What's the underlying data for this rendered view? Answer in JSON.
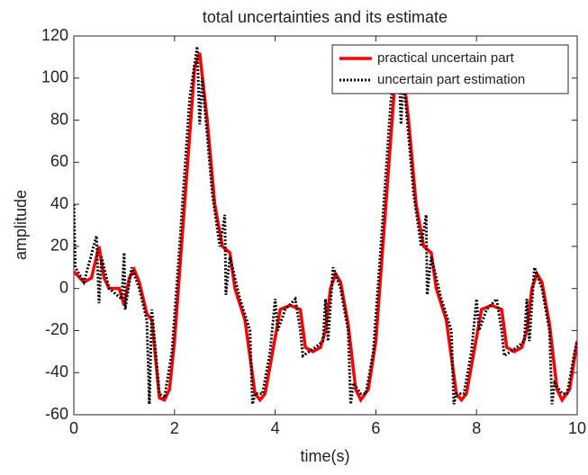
{
  "chart_data": {
    "type": "line",
    "title": "total uncertainties and its estimate",
    "x_label": "time(s)",
    "y_label": "amplitude",
    "xlim": [
      0,
      10
    ],
    "xticks": [
      0,
      2,
      4,
      6,
      8,
      10
    ],
    "ylim": [
      -60,
      120
    ],
    "yticks": [
      -60,
      -40,
      -20,
      0,
      20,
      40,
      60,
      80,
      100,
      120
    ],
    "grid": false,
    "legend": "upper right",
    "series": [
      {
        "name": "practical uncertain part",
        "color": "#ff0000",
        "line_style": "solid",
        "x": [
          0,
          0.2,
          0.35,
          0.5,
          0.6,
          0.7,
          0.9,
          1.0,
          1.1,
          1.2,
          1.3,
          1.45,
          1.55,
          1.7,
          1.8,
          1.9,
          2.0,
          2.2,
          2.4,
          2.5,
          2.65,
          2.8,
          2.95,
          3.1,
          3.2,
          3.4,
          3.6,
          3.7,
          3.8,
          3.95,
          4.1,
          4.3,
          4.5,
          4.6,
          4.75,
          4.9,
          5.0,
          5.1,
          5.2,
          5.3,
          5.45,
          5.6,
          5.7,
          5.85,
          6.0,
          6.2,
          6.4,
          6.5,
          6.65,
          6.8,
          6.95,
          7.1,
          7.2,
          7.4,
          7.6,
          7.7,
          7.8,
          7.95,
          8.1,
          8.3,
          8.5,
          8.6,
          8.75,
          8.9,
          9.0,
          9.1,
          9.2,
          9.3,
          9.45,
          9.6,
          9.7,
          9.85,
          10
        ],
        "values": [
          8,
          3,
          5,
          20,
          5,
          0,
          0,
          -8,
          5,
          9,
          3,
          -12,
          -15,
          -52,
          -53,
          -48,
          -25,
          40,
          105,
          112,
          80,
          40,
          20,
          17,
          0,
          -15,
          -50,
          -53,
          -50,
          -30,
          -10,
          -8,
          -10,
          -28,
          -30,
          -28,
          -20,
          0,
          7,
          3,
          -17,
          -48,
          -53,
          -48,
          -25,
          40,
          105,
          112,
          80,
          40,
          20,
          17,
          0,
          -15,
          -50,
          -53,
          -50,
          -30,
          -10,
          -8,
          -10,
          -28,
          -30,
          -28,
          -20,
          0,
          7,
          3,
          -17,
          -48,
          -53,
          -48,
          -25
        ]
      },
      {
        "name": "uncertain part estimation",
        "color": "#000000",
        "line_style": "dotted",
        "x": [
          0,
          0.03,
          0.2,
          0.45,
          0.5,
          0.55,
          0.7,
          0.95,
          1.0,
          1.02,
          1.15,
          1.3,
          1.45,
          1.5,
          1.55,
          1.7,
          1.8,
          1.95,
          2.1,
          2.3,
          2.45,
          2.5,
          2.55,
          2.75,
          2.9,
          3.0,
          3.02,
          3.1,
          3.3,
          3.5,
          3.55,
          3.6,
          3.75,
          3.9,
          4.0,
          4.05,
          4.2,
          4.4,
          4.5,
          4.55,
          4.8,
          4.95,
          5.0,
          5.05,
          5.15,
          5.3,
          5.45,
          5.5,
          5.55,
          5.7,
          5.8,
          5.95,
          6.1,
          6.3,
          6.45,
          6.5,
          6.55,
          6.75,
          6.9,
          7.0,
          7.02,
          7.1,
          7.3,
          7.5,
          7.55,
          7.6,
          7.75,
          7.9,
          8.0,
          8.05,
          8.2,
          8.4,
          8.5,
          8.55,
          8.8,
          8.95,
          9.0,
          9.05,
          9.15,
          9.3,
          9.45,
          9.5,
          9.55,
          9.7,
          9.8,
          9.95,
          10
        ],
        "values": [
          40,
          10,
          3,
          25,
          -7,
          15,
          0,
          -5,
          17,
          -10,
          10,
          0,
          -15,
          -55,
          -10,
          -50,
          -52,
          -30,
          20,
          90,
          115,
          78,
          100,
          45,
          20,
          35,
          -3,
          15,
          -5,
          -20,
          -55,
          -50,
          -50,
          -30,
          -5,
          -20,
          -10,
          -5,
          -20,
          -32,
          -28,
          -25,
          -5,
          -25,
          10,
          0,
          -20,
          -55,
          -45,
          -50,
          -50,
          -30,
          20,
          90,
          112,
          78,
          100,
          45,
          20,
          35,
          -3,
          15,
          -5,
          -20,
          -55,
          -50,
          -50,
          -30,
          -5,
          -20,
          -10,
          -5,
          -20,
          -32,
          -28,
          -25,
          -5,
          -25,
          10,
          0,
          -20,
          -55,
          -45,
          -50,
          -50,
          -30,
          -25
        ]
      }
    ]
  }
}
